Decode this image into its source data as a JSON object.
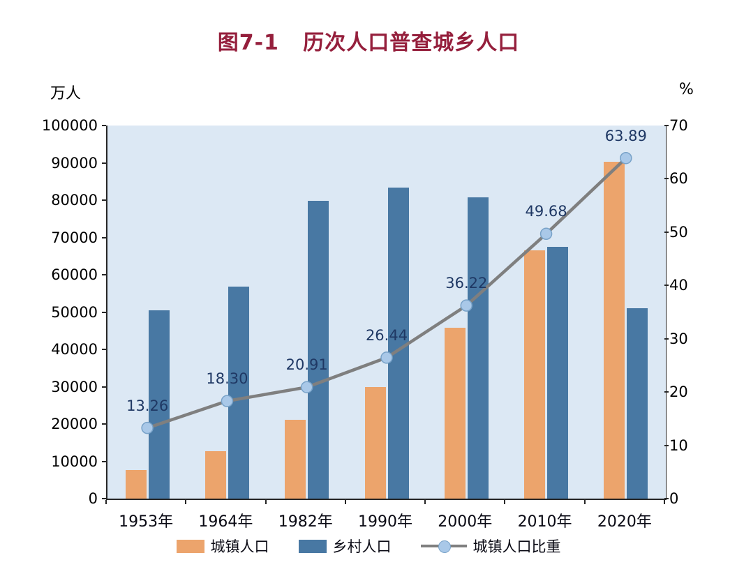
{
  "title": "图7-1   历次人口普查城乡人口",
  "left_axis_unit": "万人",
  "right_axis_unit": "%",
  "colors": {
    "title": "#951F3C",
    "plot_bg": "#DCE8F4",
    "axis_text": "#000000",
    "value_label": "#1F3864",
    "urban_bar": "#ECA46C",
    "rural_bar": "#4878A3",
    "line": "#7F7F7F",
    "marker_fill": "#A9C8E8",
    "marker_stroke": "#78A2C8"
  },
  "legend": [
    {
      "label": "城镇人口",
      "swatch": "bar",
      "color": "#ECA46C"
    },
    {
      "label": "乡村人口",
      "swatch": "bar",
      "color": "#4878A3"
    },
    {
      "label": "城镇人口比重",
      "swatch": "line-marker",
      "color": "#7F7F7F"
    }
  ],
  "chart_data": {
    "type": "bar+line",
    "title": "图7-1 历次人口普查城乡人口",
    "categories": [
      "1953年",
      "1964年",
      "1982年",
      "1990年",
      "2000年",
      "2010年",
      "2020年"
    ],
    "series": [
      {
        "name": "城镇人口",
        "type": "bar",
        "axis": "left",
        "color": "#ECA46C",
        "values": [
          7726,
          12710,
          21082,
          29971,
          45844,
          66557,
          90199
        ]
      },
      {
        "name": "乡村人口",
        "type": "bar",
        "axis": "left",
        "color": "#4878A3",
        "values": [
          50534,
          56748,
          79736,
          83397,
          80739,
          67415,
          50979
        ]
      },
      {
        "name": "城镇人口比重",
        "type": "line",
        "axis": "right",
        "color": "#7F7F7F",
        "marker_fill": "#A9C8E8",
        "marker_stroke": "#78A2C8",
        "values": [
          13.26,
          18.3,
          20.91,
          26.44,
          36.22,
          49.68,
          63.89
        ],
        "labels": [
          "13.26",
          "18.30",
          "20.91",
          "26.44",
          "36.22",
          "49.68",
          "63.89"
        ]
      }
    ],
    "left_axis": {
      "unit": "万人",
      "min": 0,
      "max": 100000,
      "step": 10000,
      "ticks": [
        "0",
        "10000",
        "20000",
        "30000",
        "40000",
        "50000",
        "60000",
        "70000",
        "80000",
        "90000",
        "100000"
      ]
    },
    "right_axis": {
      "unit": "%",
      "min": 0,
      "max": 70,
      "step": 10,
      "ticks": [
        "0",
        "10",
        "20",
        "30",
        "40",
        "50",
        "60",
        "70"
      ]
    },
    "grid": false,
    "legend_position": "bottom"
  }
}
